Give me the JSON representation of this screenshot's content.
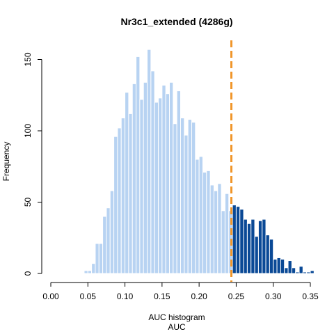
{
  "chart_data": {
    "type": "histogram",
    "title": "Nr3c1_extended (4286g)",
    "xlabel": "AUC histogram",
    "xlabel2": "AUC",
    "ylabel": "Frequency",
    "xlim": [
      0,
      0.35
    ],
    "ylim": [
      0,
      160
    ],
    "xticks": [
      "0.00",
      "0.05",
      "0.10",
      "0.15",
      "0.20",
      "0.25",
      "0.30",
      "0.35"
    ],
    "yticks": [
      "0",
      "50",
      "100",
      "150"
    ],
    "bin_start": 0.045,
    "bin_width": 0.005,
    "threshold": 0.2435,
    "colors": {
      "below_threshold": "#b8d3f2",
      "above_threshold": "#0a4996",
      "bar_border": "#ffffff",
      "threshold_line": "#f0962a"
    },
    "counts": [
      2,
      2,
      7,
      21,
      21,
      40,
      46,
      58,
      96,
      102,
      109,
      127,
      112,
      133,
      152,
      122,
      134,
      157,
      142,
      120,
      123,
      132,
      126,
      134,
      105,
      128,
      109,
      97,
      108,
      106,
      80,
      82,
      71,
      72,
      62,
      58,
      63,
      44,
      56,
      44,
      48,
      47,
      45,
      38,
      35,
      38,
      26,
      37,
      38,
      27,
      24,
      10,
      11,
      10,
      4,
      9,
      4,
      1,
      5,
      1,
      1,
      2
    ]
  }
}
